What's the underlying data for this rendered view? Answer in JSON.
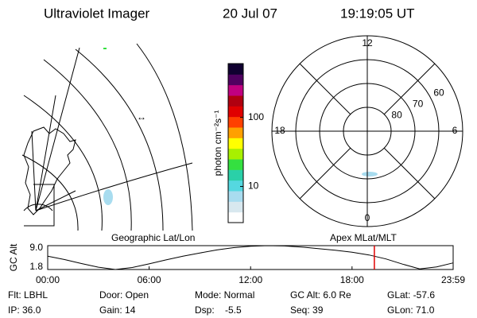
{
  "header": {
    "title": "Ultraviolet Imager",
    "date": "20 Jul 07",
    "time": "19:19:05 UT"
  },
  "panel_labels": [
    "Geographic Lat/Lon",
    "Apex MLat/MLT"
  ],
  "chart_data": [
    {
      "type": "colorbar",
      "label": "photon cm⁻²s⁻¹",
      "log_scale": true,
      "ylim": [
        3,
        600
      ],
      "yticks": [
        10,
        100
      ],
      "colors": [
        "#ffffff",
        "#d8e8ef",
        "#a8dcef",
        "#55d8e0",
        "#2ad0a8",
        "#34e040",
        "#a8f000",
        "#ffff00",
        "#ffa000",
        "#ff4000",
        "#e00000",
        "#b00010",
        "#c00080",
        "#500060",
        "#100030"
      ]
    },
    {
      "type": "polar",
      "rlim": [
        90,
        50
      ],
      "rticks": [
        80,
        70,
        60
      ],
      "thetaticks": [
        12,
        18,
        6,
        0
      ]
    },
    {
      "type": "line",
      "ylabel": "GC Alt",
      "color": "#000000",
      "x": [
        0,
        1,
        2,
        3,
        4,
        5,
        6,
        7,
        8,
        9,
        10,
        11,
        12,
        13,
        14,
        15,
        16,
        17,
        18,
        19,
        20,
        21,
        22,
        23,
        23.98
      ],
      "values": [
        5.8,
        4.8,
        3.6,
        2.5,
        1.8,
        2.4,
        3.5,
        4.7,
        5.8,
        6.8,
        7.7,
        8.4,
        8.8,
        9.0,
        8.9,
        8.6,
        8.1,
        7.6,
        7.0,
        6.2,
        5.0,
        3.4,
        2.0,
        2.6,
        3.8
      ],
      "xlim": [
        0,
        23.98
      ],
      "ylim": [
        1.8,
        9.0
      ],
      "xticks": [
        {
          "value": 0,
          "label": "00:00"
        },
        {
          "value": 6,
          "label": "06:00"
        },
        {
          "value": 12,
          "label": "12:00"
        },
        {
          "value": 18,
          "label": "18:00"
        },
        {
          "value": 23.98,
          "label": "23:59"
        }
      ],
      "yticks": [
        {
          "value": 9.0,
          "label": "9.0"
        },
        {
          "value": 1.8,
          "label": "1.8"
        }
      ],
      "marker": {
        "x": 19.32,
        "color": "#e00000"
      }
    }
  ],
  "footer": {
    "rows": [
      [
        "Flt: LBHL",
        "Door: Open",
        "Mode: Normal",
        "GC Alt: 6.0 Re",
        "GLat: -57.6"
      ],
      [
        "IP: 36.0",
        "Gain: 14",
        "Dsp:    -5.5",
        "Seq: 39",
        "GLon: 71.0"
      ]
    ]
  }
}
